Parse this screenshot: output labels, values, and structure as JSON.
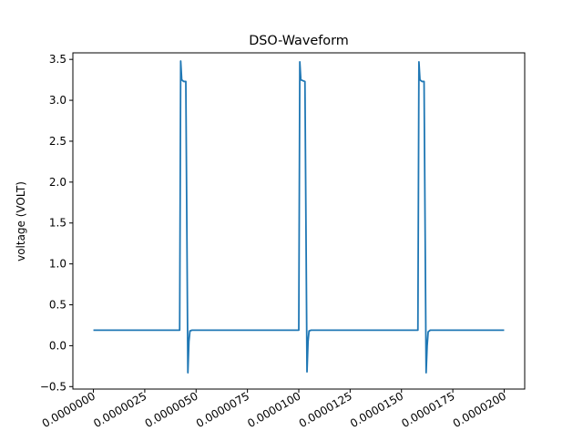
{
  "chart_data": {
    "type": "line",
    "title": "DSO-Waveform",
    "xlabel": "",
    "ylabel": "voltage (VOLT)",
    "xlim": [
      -1e-06,
      2.1e-05
    ],
    "ylim": [
      -0.53,
      3.58
    ],
    "grid": false,
    "xticks": [
      {
        "value": 0.0,
        "label": "0.0000000"
      },
      {
        "value": 2.5e-06,
        "label": "0.0000025"
      },
      {
        "value": 5e-06,
        "label": "0.0000050"
      },
      {
        "value": 7.5e-06,
        "label": "0.0000075"
      },
      {
        "value": 1e-05,
        "label": "0.0000100"
      },
      {
        "value": 1.25e-05,
        "label": "0.0000125"
      },
      {
        "value": 1.5e-05,
        "label": "0.0000150"
      },
      {
        "value": 1.75e-05,
        "label": "0.0000175"
      },
      {
        "value": 2e-05,
        "label": "0.0000200"
      }
    ],
    "yticks": [
      {
        "value": -0.5,
        "label": "−0.5"
      },
      {
        "value": 0.0,
        "label": "0.0"
      },
      {
        "value": 0.5,
        "label": "0.5"
      },
      {
        "value": 1.0,
        "label": "1.0"
      },
      {
        "value": 1.5,
        "label": "1.5"
      },
      {
        "value": 2.0,
        "label": "2.0"
      },
      {
        "value": 2.5,
        "label": "2.5"
      },
      {
        "value": 3.0,
        "label": "3.0"
      },
      {
        "value": 3.5,
        "label": "3.5"
      }
    ],
    "series": [
      {
        "color": "#1f77b4",
        "x": [
          0,
          4.2e-06,
          4.25e-06,
          4.3e-06,
          4.4e-06,
          4.5e-06,
          4.6e-06,
          4.65e-06,
          4.7e-06,
          4.8e-06,
          1e-05,
          1.005e-05,
          1.01e-05,
          1.02e-05,
          1.03e-05,
          1.04e-05,
          1.045e-05,
          1.05e-05,
          1.06e-05,
          1.58e-05,
          1.585e-05,
          1.59e-05,
          1.595e-05,
          1.6e-05,
          1.61e-05,
          1.62e-05,
          1.625e-05,
          1.63e-05,
          1.64e-05,
          2e-05
        ],
        "y": [
          0.19,
          0.19,
          3.48,
          3.25,
          3.23,
          3.23,
          -0.33,
          0.05,
          0.18,
          0.19,
          0.19,
          3.47,
          3.25,
          3.24,
          3.23,
          -0.32,
          0.05,
          0.18,
          0.19,
          0.19,
          3.47,
          3.25,
          3.24,
          3.23,
          3.23,
          -0.33,
          0.0,
          0.17,
          0.19,
          0.19
        ]
      }
    ]
  }
}
